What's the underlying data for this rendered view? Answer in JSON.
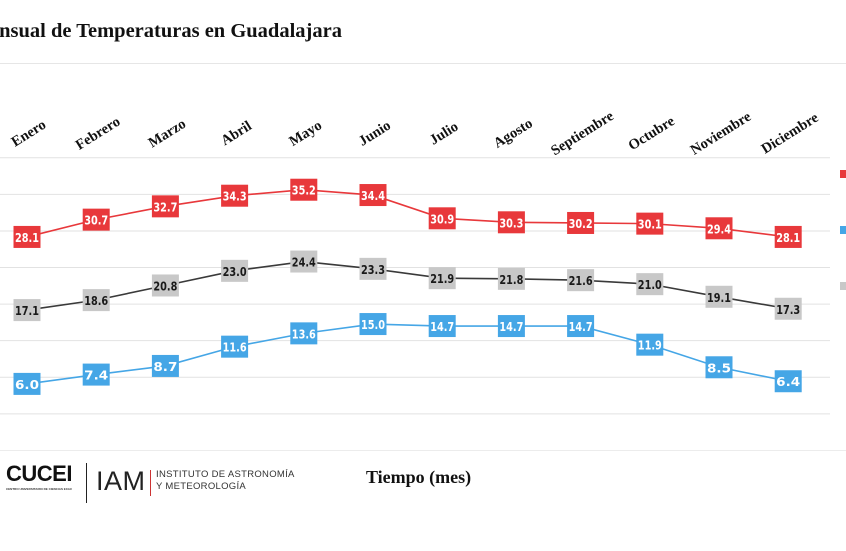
{
  "title": "ensual de Temperaturas en Guadalajara",
  "logos": {
    "cucei": "CUCEI",
    "cucei_sub": "CENTRO UNIVERSITARIO DE CIENCIAS EXACTAS E INGENIERÍAS",
    "iam": "IAM",
    "iam_line1": "INSTITUTO DE ASTRONOMÍA",
    "iam_line2": "Y METEOROLOGÍA"
  },
  "chart_data": {
    "type": "line",
    "title": "ensual de Temperaturas en Guadalajara",
    "xlabel": "Tiempo (mes)",
    "ylabel": "",
    "categories": [
      "Enero",
      "Febrero",
      "Marzo",
      "Abril",
      "Mayo",
      "Junio",
      "Julio",
      "Agosto",
      "Septiembre",
      "Octubre",
      "Noviembre",
      "Diciembre"
    ],
    "ylim": [
      0,
      40
    ],
    "grid": true,
    "legend": "right",
    "series": [
      {
        "color": "#e8383b",
        "label_bg": "#e8383b",
        "label_color": "#ffffff",
        "values": [
          28.1,
          30.7,
          32.7,
          34.3,
          35.2,
          34.4,
          30.9,
          30.3,
          30.2,
          30.1,
          29.4,
          28.1
        ]
      },
      {
        "color": "#3a3a3a",
        "label_bg": "#c8c8c8",
        "label_color": "#1a1a1a",
        "values": [
          17.1,
          18.6,
          20.8,
          23.0,
          24.4,
          23.3,
          21.9,
          21.8,
          21.6,
          21.0,
          19.1,
          17.3
        ]
      },
      {
        "color": "#45a6e6",
        "label_bg": "#45a6e6",
        "label_color": "#ffffff",
        "values": [
          6.0,
          7.4,
          8.7,
          11.6,
          13.6,
          15.0,
          14.7,
          14.7,
          14.7,
          11.9,
          8.5,
          6.4
        ]
      }
    ]
  }
}
